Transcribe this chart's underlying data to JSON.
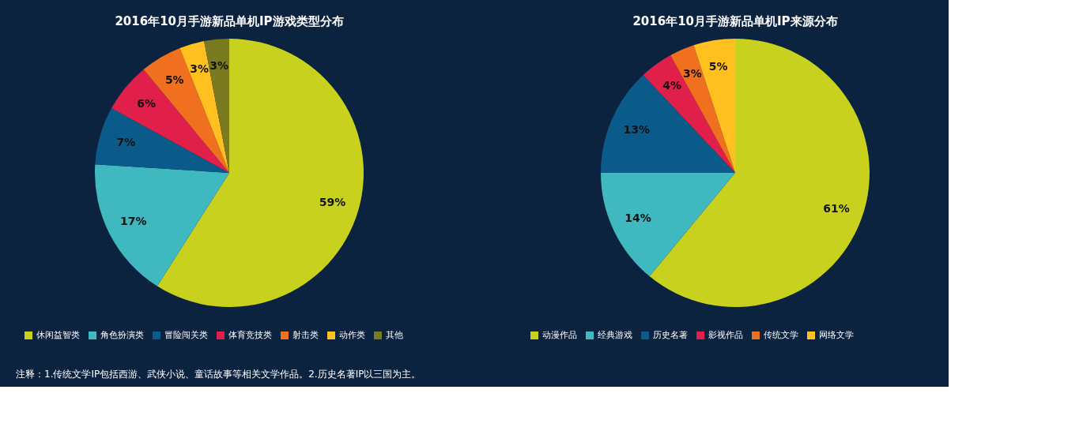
{
  "chart_data": [
    {
      "type": "pie",
      "title": "2016年10月手游新品单机IP游戏类型分布",
      "categories": [
        "休闲益智类",
        "角色扮演类",
        "冒险闯关类",
        "体育竞技类",
        "射击类",
        "动作类",
        "其他"
      ],
      "values": [
        59,
        17,
        7,
        6,
        5,
        3,
        3
      ],
      "value_labels": [
        "59%",
        "17%",
        "7%",
        "6%",
        "5%",
        "3%",
        "3%"
      ],
      "colors": [
        "#c8d21e",
        "#40b8c0",
        "#0a5a8a",
        "#e0204a",
        "#f07020",
        "#ffc020",
        "#7a7a20"
      ],
      "legend": "bottom",
      "annotations": [
        "注释：1.传统文学IP包括西游、武侠小说、童话故事等相关文学作品。2.历史名著IP以三国为主。"
      ]
    },
    {
      "type": "pie",
      "title": "2016年10月手游新品单机IP来源分布",
      "categories": [
        "动漫作品",
        "经典游戏",
        "历史名著",
        "影视作品",
        "传统文学",
        "网络文学"
      ],
      "values": [
        61,
        14,
        13,
        4,
        3,
        5
      ],
      "value_labels": [
        "61%",
        "14%",
        "13%",
        "4%",
        "3%",
        "5%"
      ],
      "colors": [
        "#c8d21e",
        "#40b8c0",
        "#0a5a8a",
        "#e0204a",
        "#f07020",
        "#ffc020"
      ],
      "legend": "bottom"
    }
  ]
}
